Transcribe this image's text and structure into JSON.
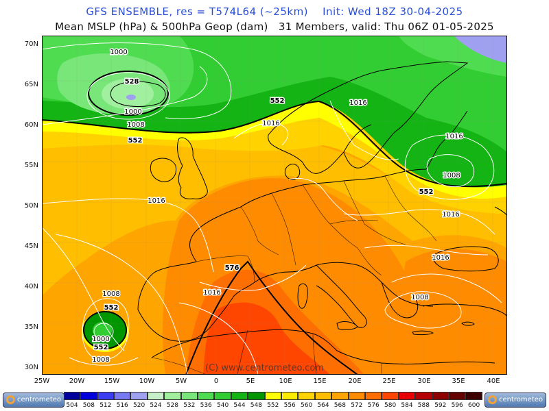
{
  "header": {
    "line1": "GFS ENSEMBLE, res = T574L64 (~25km)    Init: Wed 18Z 30-04-2025",
    "line2": "Mean MSLP (hPa) & 500hPa Geop (dam)   31 Members, valid: Thu 06Z 01-05-2025"
  },
  "map": {
    "watermark": "(C) www.centrometeo.com",
    "lat_labels": [
      "70N",
      "65N",
      "60N",
      "55N",
      "50N",
      "45N",
      "40N",
      "35N",
      "30N"
    ],
    "lon_labels": [
      "25W",
      "20W",
      "15W",
      "10W",
      "5W",
      "0",
      "5E",
      "10E",
      "15E",
      "20E",
      "25E",
      "30E",
      "35E",
      "40E"
    ],
    "contour_labels": {
      "mslp": [
        "1000",
        "1000",
        "1008",
        "1016",
        "1016",
        "1016",
        "1016",
        "1008",
        "1016",
        "1016",
        "1016",
        "1008",
        "1008",
        "1000",
        "1008"
      ],
      "geop": [
        "528",
        "552",
        "552",
        "552",
        "576",
        "552",
        "552"
      ]
    }
  },
  "colorbar": {
    "values": [
      "504",
      "508",
      "512",
      "516",
      "520",
      "524",
      "528",
      "532",
      "536",
      "540",
      "544",
      "548",
      "552",
      "556",
      "560",
      "564",
      "568",
      "572",
      "576",
      "580",
      "584",
      "588",
      "592",
      "596",
      "600"
    ],
    "colors": [
      "#00009c",
      "#0000dc",
      "#3c3cf0",
      "#7878f0",
      "#a0a0f0",
      "#c8f0c8",
      "#a0f0a0",
      "#78e678",
      "#50dc50",
      "#32cd32",
      "#14b414",
      "#009600",
      "#ffff00",
      "#ffeb00",
      "#ffd200",
      "#ffbe00",
      "#ffa500",
      "#ff8c00",
      "#ff6e00",
      "#ff4600",
      "#e60000",
      "#b40000",
      "#8c0000",
      "#640000",
      "#3c0000"
    ]
  },
  "logo": {
    "left_text": "centrometeo",
    "right_text": "centrometeo"
  }
}
